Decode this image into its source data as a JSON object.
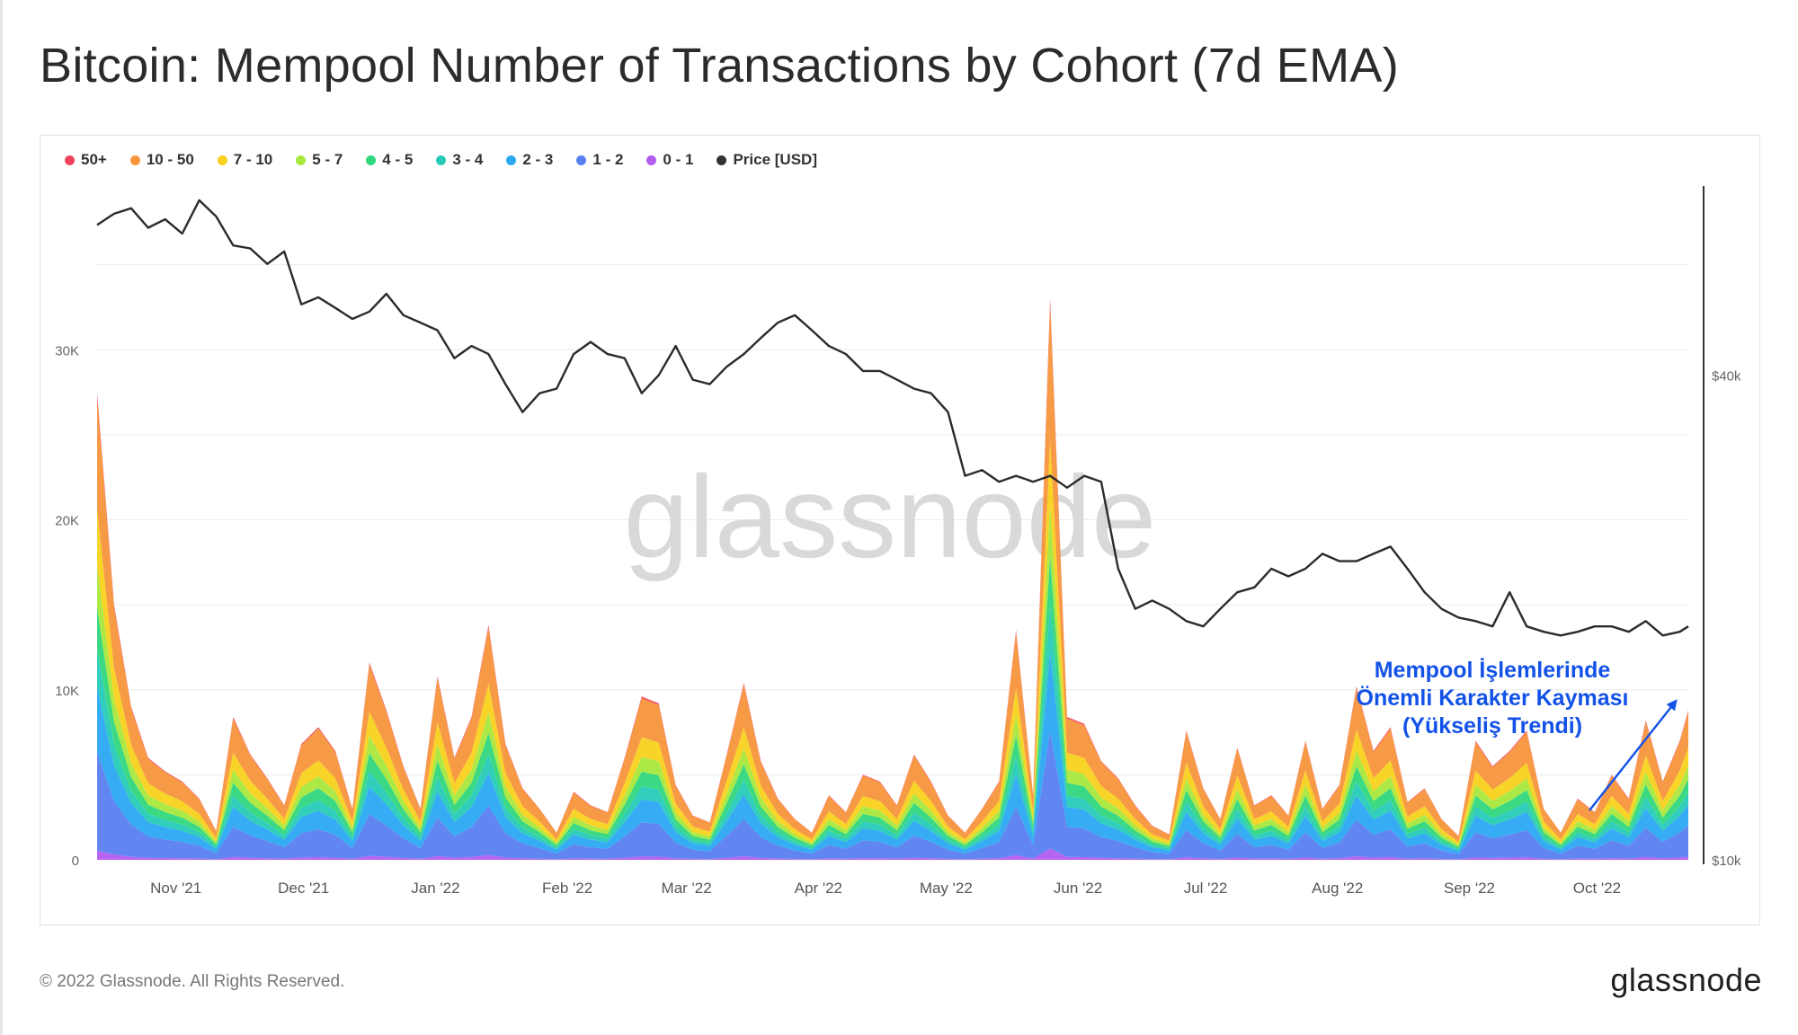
{
  "title": "Bitcoin: Mempool Number of Transactions by Cohort (7d EMA)",
  "footer": {
    "copyright": "© 2022 Glassnode. All Rights Reserved.",
    "logo": "glassnode"
  },
  "watermark": "glassnode",
  "annotation": {
    "lines": [
      "Mempool İşlemlerinde",
      "Önemli Karakter Kayması",
      "(Yükseliş Trendi)"
    ],
    "color": "#1352e8"
  },
  "legend": [
    {
      "label": "50+",
      "color": "#f0425c"
    },
    {
      "label": "10 - 50",
      "color": "#f7953b"
    },
    {
      "label": "7 - 10",
      "color": "#f8d21e"
    },
    {
      "label": "5 - 7",
      "color": "#a8e83c"
    },
    {
      "label": "4 - 5",
      "color": "#31d77e"
    },
    {
      "label": "3 - 4",
      "color": "#27cbb8"
    },
    {
      "label": "2 - 3",
      "color": "#2aa8f2"
    },
    {
      "label": "1 - 2",
      "color": "#5a7ff0"
    },
    {
      "label": "0 - 1",
      "color": "#b25cf0"
    },
    {
      "label": "Price [USD]",
      "color": "#333333"
    }
  ],
  "chart_data": {
    "type": "area",
    "stacked": true,
    "x_label": "",
    "y_label": "",
    "x_ticks": [
      "Nov '21",
      "Dec '21",
      "Jan '22",
      "Feb '22",
      "Mar '22",
      "Apr '22",
      "May '22",
      "Jun '22",
      "Jul '22",
      "Aug '22",
      "Sep '22",
      "Oct '22"
    ],
    "y_ticks": [
      "0",
      "10K",
      "20K",
      "30K"
    ],
    "ylim": [
      0,
      40000
    ],
    "y2_ticks": [
      "$10k",
      "$40k"
    ],
    "y2_scale": "log",
    "y2lim": [
      10000,
      70000
    ],
    "x_start": "2021-10-16",
    "x_end": "2022-10-25",
    "dates": [
      "2021-10-16",
      "2021-10-20",
      "2021-10-24",
      "2021-10-28",
      "2021-11-01",
      "2021-11-05",
      "2021-11-09",
      "2021-11-13",
      "2021-11-17",
      "2021-11-21",
      "2021-11-25",
      "2021-11-29",
      "2021-12-03",
      "2021-12-07",
      "2021-12-11",
      "2021-12-15",
      "2021-12-19",
      "2021-12-23",
      "2021-12-27",
      "2021-12-31",
      "2022-01-04",
      "2022-01-08",
      "2022-01-12",
      "2022-01-16",
      "2022-01-20",
      "2022-01-24",
      "2022-01-28",
      "2022-02-01",
      "2022-02-05",
      "2022-02-09",
      "2022-02-13",
      "2022-02-17",
      "2022-02-21",
      "2022-02-25",
      "2022-03-01",
      "2022-03-05",
      "2022-03-09",
      "2022-03-13",
      "2022-03-17",
      "2022-03-21",
      "2022-03-25",
      "2022-03-29",
      "2022-04-02",
      "2022-04-06",
      "2022-04-10",
      "2022-04-14",
      "2022-04-18",
      "2022-04-22",
      "2022-04-26",
      "2022-04-30",
      "2022-05-04",
      "2022-05-08",
      "2022-05-12",
      "2022-05-16",
      "2022-05-20",
      "2022-05-24",
      "2022-05-28",
      "2022-06-01",
      "2022-06-05",
      "2022-06-09",
      "2022-06-13",
      "2022-06-17",
      "2022-06-21",
      "2022-06-25",
      "2022-06-29",
      "2022-07-03",
      "2022-07-07",
      "2022-07-11",
      "2022-07-15",
      "2022-07-19",
      "2022-07-23",
      "2022-07-27",
      "2022-07-31",
      "2022-08-04",
      "2022-08-08",
      "2022-08-12",
      "2022-08-16",
      "2022-08-20",
      "2022-08-24",
      "2022-08-28",
      "2022-09-01",
      "2022-09-05",
      "2022-09-09",
      "2022-09-13",
      "2022-09-17",
      "2022-09-21",
      "2022-09-25",
      "2022-09-29",
      "2022-10-03",
      "2022-10-07",
      "2022-10-11",
      "2022-10-15",
      "2022-10-19",
      "2022-10-23",
      "2022-10-25"
    ],
    "totals": [
      27500,
      15000,
      9000,
      6000,
      5200,
      4600,
      3600,
      1700,
      8400,
      6200,
      4800,
      3200,
      6800,
      7800,
      6400,
      3000,
      11600,
      8800,
      5500,
      3000,
      10800,
      6000,
      8400,
      13800,
      6800,
      4200,
      3000,
      1600,
      4000,
      3200,
      2800,
      6000,
      9600,
      9200,
      4400,
      2600,
      2200,
      6200,
      10400,
      5800,
      3600,
      2400,
      1600,
      3800,
      2800,
      5000,
      4600,
      3200,
      6200,
      4600,
      2600,
      1600,
      3000,
      4600,
      13500,
      3800,
      33000,
      8400,
      8000,
      5800,
      4800,
      3200,
      2000,
      1500,
      7600,
      4200,
      2400,
      6600,
      3200,
      3800,
      2600,
      7000,
      3000,
      4400,
      10200,
      6400,
      7800,
      3400,
      4200,
      2400,
      1400,
      7000,
      5500,
      6400,
      7600,
      3000,
      1600,
      3600,
      2800,
      5000,
      3600,
      8200,
      4600,
      7000,
      8800
    ],
    "price": [
      61500,
      63500,
      64500,
      61000,
      62500,
      60000,
      66000,
      63000,
      58000,
      57500,
      55000,
      57000,
      49000,
      50000,
      48500,
      47000,
      48000,
      50500,
      47500,
      46500,
      45500,
      42000,
      43500,
      42500,
      39000,
      36000,
      38000,
      38500,
      42500,
      44000,
      42500,
      42000,
      38000,
      40000,
      43500,
      39500,
      39000,
      41000,
      42500,
      44500,
      46500,
      47500,
      45500,
      43500,
      42500,
      40500,
      40500,
      39500,
      38500,
      38000,
      36000,
      30000,
      30500,
      29500,
      30000,
      29500,
      30000,
      29000,
      30000,
      29500,
      23000,
      20500,
      21000,
      20500,
      19800,
      19500,
      20500,
      21500,
      21800,
      23000,
      22500,
      23000,
      24000,
      23500,
      23500,
      24000,
      24500,
      23000,
      21500,
      20500,
      20000,
      19800,
      19500,
      21500,
      19500,
      19200,
      19000,
      19200,
      19500,
      19500,
      19200,
      19800,
      19000,
      19200,
      19500
    ],
    "series": [
      {
        "name": "50+",
        "color": "#f0425c",
        "share": 0.01
      },
      {
        "name": "10 - 50",
        "color": "#f7953b",
        "share": 0.24
      },
      {
        "name": "7 - 10",
        "color": "#f8d21e",
        "share": 0.12
      },
      {
        "name": "5 - 7",
        "color": "#a8e83c",
        "share": 0.09
      },
      {
        "name": "4 - 5",
        "color": "#31d77e",
        "share": 0.09
      },
      {
        "name": "3 - 4",
        "color": "#27cbb8",
        "share": 0.08
      },
      {
        "name": "2 - 3",
        "color": "#2aa8f2",
        "share": 0.14
      },
      {
        "name": "1 - 2",
        "color": "#5a7ff0",
        "share": 0.21
      },
      {
        "name": "0 - 1",
        "color": "#b25cf0",
        "share": 0.02
      }
    ],
    "series_order_note": "",
    "grid": true,
    "legend_position": "top-left"
  }
}
